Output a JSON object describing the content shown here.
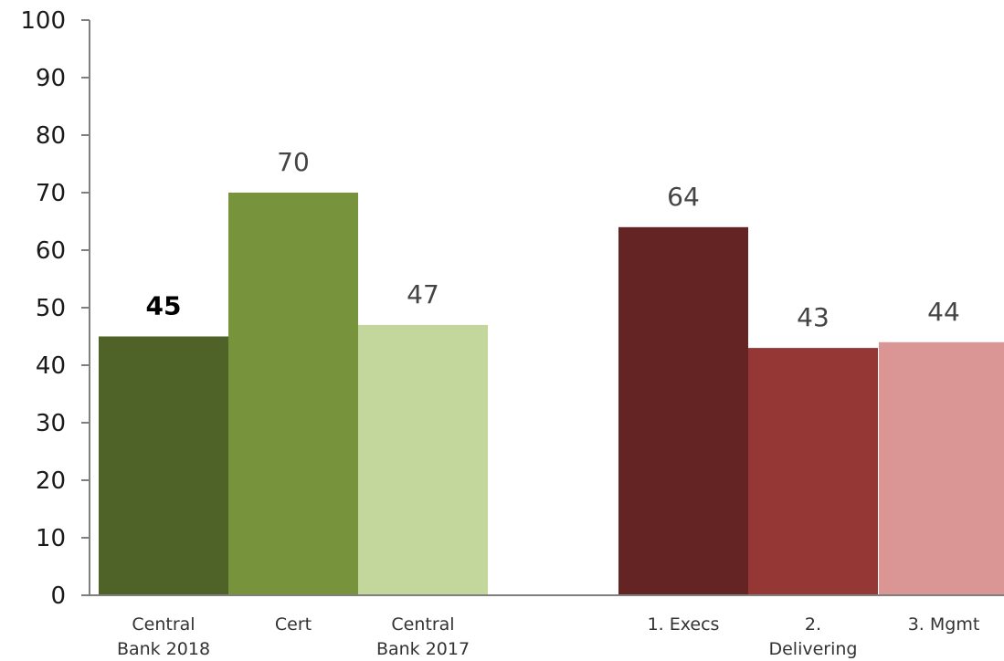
{
  "chart_data": {
    "type": "bar",
    "title": "",
    "xlabel": "",
    "ylabel": "",
    "ylim": [
      0,
      100
    ],
    "yticks": [
      0,
      10,
      20,
      30,
      40,
      50,
      60,
      70,
      80,
      90,
      100
    ],
    "grid": false,
    "legend": "none",
    "categories": [
      [
        "Central",
        "Bank 2018"
      ],
      [
        "Cert"
      ],
      [
        "Central",
        "Bank 2017"
      ],
      [
        "1. Execs"
      ],
      [
        "2.",
        "Delivering"
      ],
      [
        "3. Mgmt"
      ]
    ],
    "values": [
      45,
      70,
      47,
      64,
      43,
      44
    ],
    "colors": [
      "#4f6228",
      "#77933c",
      "#c3d69b",
      "#632423",
      "#953735",
      "#d99694"
    ],
    "highlighted_label": [
      true,
      false,
      false,
      false,
      false,
      false
    ]
  }
}
